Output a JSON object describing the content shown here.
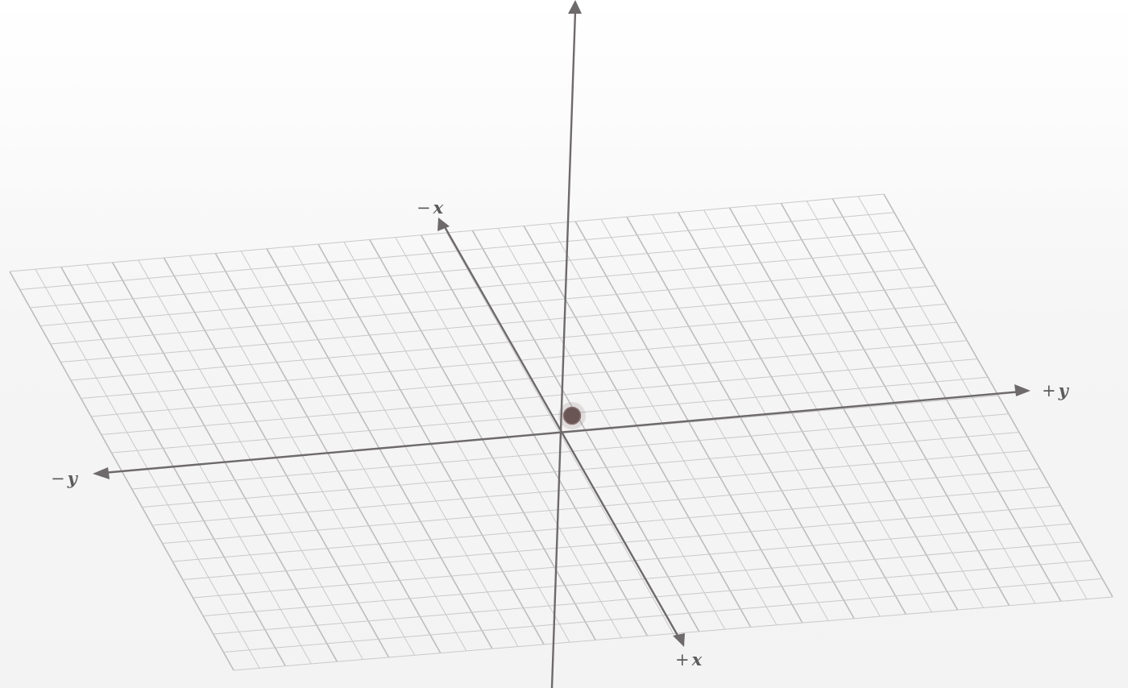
{
  "axes": {
    "pos_x": {
      "sign": "+",
      "letter": "x"
    },
    "neg_x": {
      "sign": "−",
      "letter": "x"
    },
    "pos_y": {
      "sign": "+",
      "letter": "y"
    },
    "neg_y": {
      "sign": "−",
      "letter": "y"
    }
  },
  "grid": {
    "divisions_y": 34,
    "divisions_x": 22
  },
  "colors": {
    "axis": "#6e6a6b",
    "grid": "#c9c9c9",
    "point": "#6a5555"
  }
}
